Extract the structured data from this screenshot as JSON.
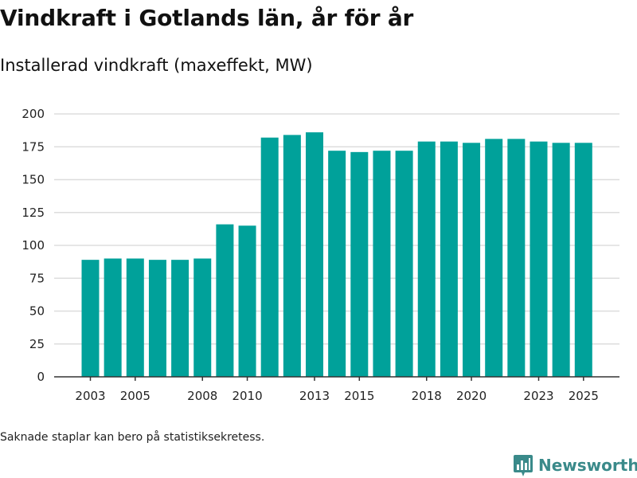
{
  "title": "Vindkraft i Gotlands län, år för år",
  "subtitle": "Installerad vindkraft (maxeffekt, MW)",
  "footnote": "Saknade staplar kan bero på statistiksekretess.",
  "brand": {
    "name": "Newsworthy",
    "icon": "newsworthy-logo-icon"
  },
  "colors": {
    "bar": "#00a19a",
    "grid": "#dddddd",
    "axis": "#333333",
    "brand": "#3a8a8a"
  },
  "chart_data": {
    "type": "bar",
    "title": "Vindkraft i Gotlands län, år för år",
    "subtitle": "Installerad vindkraft (maxeffekt, MW)",
    "xlabel": "",
    "ylabel": "",
    "categories": [
      2003,
      2004,
      2005,
      2006,
      2007,
      2008,
      2009,
      2010,
      2011,
      2012,
      2013,
      2014,
      2015,
      2016,
      2017,
      2018,
      2019,
      2020,
      2021,
      2022,
      2023,
      2024,
      2025
    ],
    "values": [
      89,
      90,
      90,
      89,
      89,
      90,
      116,
      115,
      182,
      184,
      186,
      172,
      171,
      172,
      172,
      179,
      179,
      178,
      181,
      181,
      179,
      178,
      178
    ],
    "x_tick_labels": [
      "2003",
      "2005",
      "2008",
      "2010",
      "2013",
      "2015",
      "2018",
      "2020",
      "2023",
      "2025"
    ],
    "y_ticks": [
      0,
      25,
      50,
      75,
      100,
      125,
      150,
      175,
      200
    ],
    "ylim": [
      0,
      200
    ],
    "grid": true,
    "legend": "none"
  }
}
